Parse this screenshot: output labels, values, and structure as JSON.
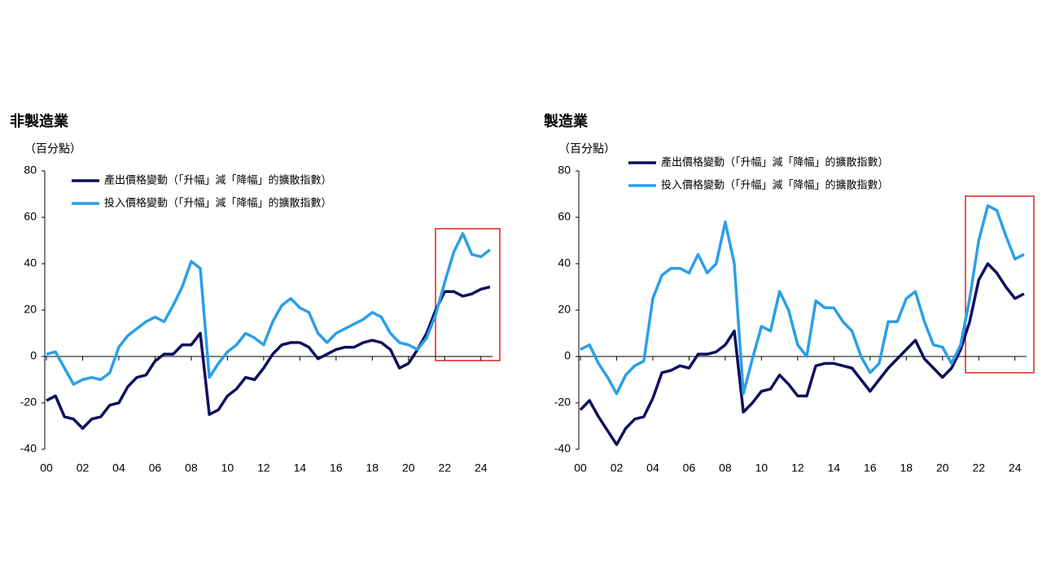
{
  "chart_data": [
    {
      "type": "line",
      "title": "非製造業",
      "y_label": "（百分點）",
      "x": [
        0,
        0.5,
        1,
        1.5,
        2,
        2.5,
        3,
        3.5,
        4,
        4.5,
        5,
        5.5,
        6,
        6.5,
        7,
        7.5,
        8,
        8.5,
        9,
        9.5,
        10,
        10.5,
        11,
        11.5,
        12,
        12.5,
        13,
        13.5,
        14,
        14.5,
        15,
        15.5,
        16,
        16.5,
        17,
        17.5,
        18,
        18.5,
        19,
        19.5,
        20,
        20.5,
        21,
        21.5,
        22,
        22.5,
        23,
        23.5,
        24,
        24.5
      ],
      "series": [
        {
          "name": "產出價格變動（「升幅」減「降幅」的擴散指數）",
          "color": "#0f0f5e",
          "values": [
            -19,
            -17,
            -26,
            -27,
            -31,
            -27,
            -26,
            -21,
            -20,
            -13,
            -9,
            -8,
            -2,
            1,
            1,
            5,
            5,
            10,
            -25,
            -23,
            -17,
            -14,
            -9,
            -10,
            -5,
            1,
            5,
            6,
            6,
            4,
            -1,
            1,
            3,
            4,
            4,
            6,
            7,
            6,
            3,
            -5,
            -3,
            3,
            10,
            20,
            28,
            28,
            26,
            27,
            29,
            30
          ]
        },
        {
          "name": "投入價格變動（「升幅」減「降幅」的擴散指數）",
          "color": "#2a9fe8",
          "values": [
            1,
            2,
            -5,
            -12,
            -10,
            -9,
            -10,
            -7,
            4,
            9,
            12,
            15,
            17,
            15,
            22,
            30,
            41,
            38,
            -9,
            -3,
            2,
            5,
            10,
            8,
            5,
            15,
            22,
            25,
            21,
            19,
            10,
            6,
            10,
            12,
            14,
            16,
            19,
            17,
            10,
            6,
            5,
            3,
            8,
            18,
            32,
            45,
            53,
            44,
            43,
            46
          ]
        }
      ],
      "xlim": [
        0,
        25
      ],
      "ylim": [
        -40,
        80
      ],
      "xticks": [
        {
          "value": 0,
          "label": "00"
        },
        {
          "value": 2,
          "label": "02"
        },
        {
          "value": 4,
          "label": "04"
        },
        {
          "value": 6,
          "label": "06"
        },
        {
          "value": 8,
          "label": "08"
        },
        10,
        12,
        14,
        16,
        18,
        20,
        22,
        24
      ],
      "yticks": [
        -40,
        -20,
        0,
        20,
        40,
        60,
        80
      ],
      "legend": "upper left"
    },
    {
      "type": "line",
      "title": "製造業",
      "y_label": "（百分點）",
      "x": [
        0,
        0.5,
        1,
        1.5,
        2,
        2.5,
        3,
        3.5,
        4,
        4.5,
        5,
        5.5,
        6,
        6.5,
        7,
        7.5,
        8,
        8.5,
        9,
        9.5,
        10,
        10.5,
        11,
        11.5,
        12,
        12.5,
        13,
        13.5,
        14,
        14.5,
        15,
        15.5,
        16,
        16.5,
        17,
        17.5,
        18,
        18.5,
        19,
        19.5,
        20,
        20.5,
        21,
        21.5,
        22,
        22.5,
        23,
        23.5,
        24,
        24.5
      ],
      "series": [
        {
          "name": "產出價格變動（「升幅」減「降幅」的擴散指數）",
          "color": "#0f0f5e",
          "values": [
            -23,
            -19,
            -26,
            -32,
            -38,
            -31,
            -27,
            -26,
            -18,
            -7,
            -6,
            -4,
            -5,
            1,
            1,
            2,
            5,
            11,
            -24,
            -20,
            -15,
            -14,
            -8,
            -12,
            -17,
            -17,
            -4,
            -3,
            -3,
            -4,
            -5,
            -10,
            -15,
            -10,
            -5,
            -1,
            3,
            7,
            -1,
            -5,
            -9,
            -5,
            3,
            15,
            33,
            40,
            36,
            30,
            25,
            27
          ]
        },
        {
          "name": "投入價格變動（「升幅」減「降幅」的擴散指數）",
          "color": "#2a9fe8",
          "values": [
            3,
            5,
            -3,
            -9,
            -16,
            -8,
            -4,
            -2,
            25,
            35,
            38,
            38,
            36,
            44,
            36,
            40,
            58,
            40,
            -16,
            -1,
            13,
            11,
            28,
            20,
            5,
            0,
            24,
            21,
            21,
            15,
            11,
            0,
            -7,
            -3,
            15,
            15,
            25,
            28,
            15,
            5,
            4,
            -3,
            5,
            25,
            50,
            65,
            63,
            52,
            42,
            44
          ]
        }
      ],
      "xlim": [
        0,
        25
      ],
      "ylim": [
        -40,
        80
      ],
      "xticks": [
        {
          "value": 0,
          "label": "00"
        },
        {
          "value": 2,
          "label": "02"
        },
        {
          "value": 4,
          "label": "04"
        },
        {
          "value": 6,
          "label": "06"
        },
        {
          "value": 8,
          "label": "08"
        },
        10,
        12,
        14,
        16,
        18,
        20,
        22,
        24
      ],
      "yticks": [
        -40,
        -20,
        0,
        20,
        40,
        60,
        80
      ],
      "legend": "upper center"
    }
  ]
}
